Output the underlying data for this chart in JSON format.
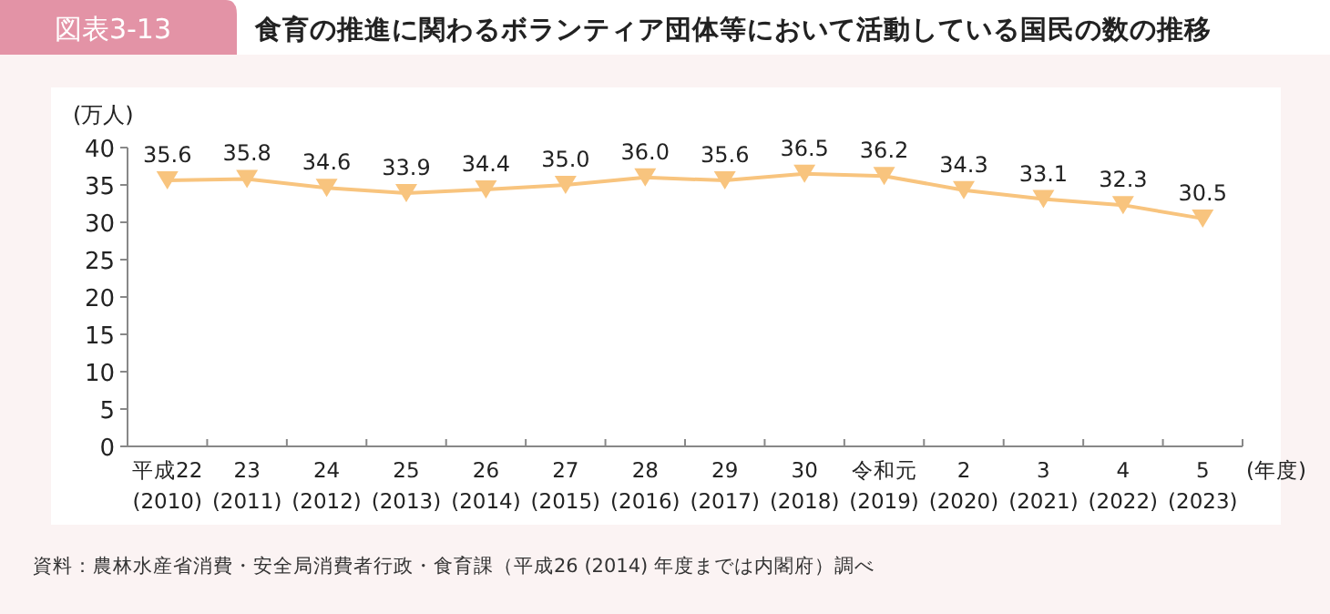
{
  "chart_data": {
    "type": "line",
    "title": "食育の推進に関わるボランティア団体等において活動している国民の数の推移",
    "xlabel": "(年度)",
    "ylabel": "(万人)",
    "categories": [
      "平成22\n(2010)",
      "23\n(2011)",
      "24\n(2012)",
      "25\n(2013)",
      "26\n(2014)",
      "27\n(2015)",
      "28\n(2016)",
      "29\n(2017)",
      "30\n(2018)",
      "令和元\n(2019)",
      "2\n(2020)",
      "3\n(2021)",
      "4\n(2022)",
      "5\n(2023)"
    ],
    "series": [
      {
        "color": "#f8c47e",
        "values": [
          35.6,
          35.8,
          34.6,
          33.9,
          34.4,
          35.0,
          36.0,
          35.6,
          36.5,
          36.2,
          34.3,
          33.1,
          32.3,
          30.5
        ]
      }
    ],
    "value_labels": [
      "35.6",
      "35.8",
      "34.6",
      "33.9",
      "34.4",
      "35.0",
      "36.0",
      "35.6",
      "36.5",
      "36.2",
      "34.3",
      "33.1",
      "32.3",
      "30.5"
    ],
    "ylim": [
      0,
      40
    ],
    "yticks": [
      0,
      5,
      10,
      15,
      20,
      25,
      30,
      35,
      40
    ],
    "grid": false,
    "marker": "triangle",
    "line_style": "solid",
    "annotations": [
      "図表3-13",
      "資料：農林水産省消費・安全局消費者行政・食育課（平成26 (2014) 年度までは内閣府）調べ"
    ]
  }
}
